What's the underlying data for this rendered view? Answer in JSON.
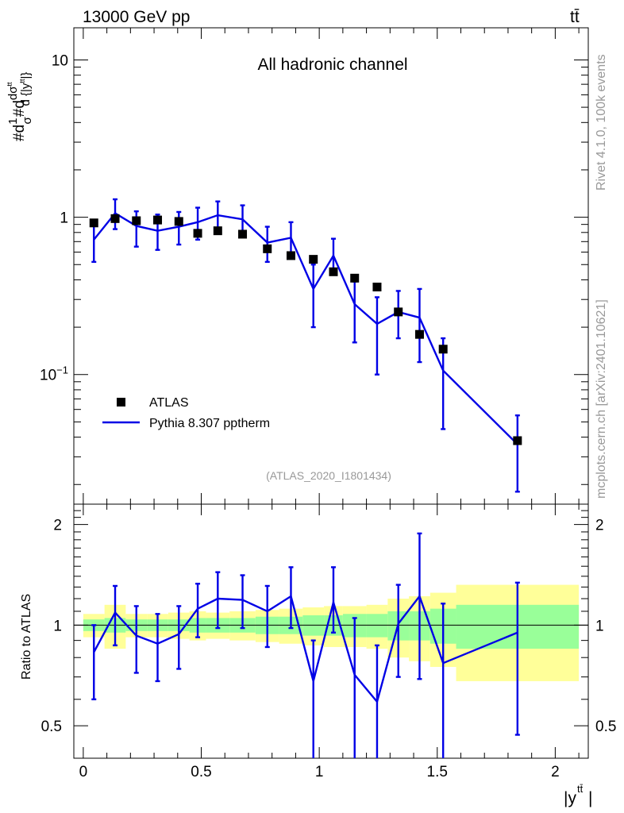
{
  "header": {
    "energy_label": "13000 GeV pp",
    "process_label": "tt̄",
    "channel_label": "All hadronic channel",
    "analysis_id": "(ATLAS_2020_I1801434)",
    "side_right_top": "Rivet 4.1.0,  100k events",
    "side_right_bottom": "mcplots.cern.ch [arXiv:2401.10621]"
  },
  "axes": {
    "main_ylabel_tex": "#d 1/σ #d dσ^{tt}/d{|y^{tt}|}",
    "ratio_ylabel": "Ratio to ATLAS",
    "xlabel": "|y",
    "xlabel_sup": "tt̄",
    "xlabel_close": "|",
    "x_ticks": [
      "0",
      "0.5",
      "1",
      "1.5",
      "2"
    ],
    "main_y_ticks": [
      "10",
      "1",
      "10^-1"
    ],
    "ratio_y_ticks": [
      "2",
      "1",
      "0.5"
    ]
  },
  "legend": {
    "data_label": "ATLAS",
    "mc_label": "Pythia 8.307 pptherm"
  },
  "colors": {
    "data": "#000000",
    "mc": "#0000e6",
    "band_inner": "#99ff99",
    "band_outer": "#ffff99"
  },
  "chart_data": {
    "type": "scatter",
    "title": "All hadronic channel",
    "xlabel": "|y^{tt}|",
    "ylabel": "1/σ dσ/d|y^{tt}|",
    "yscale": "log",
    "xlim": [
      -0.04,
      2.14
    ],
    "ylim": [
      0.015,
      16
    ],
    "ratio_ylim": [
      0.4,
      2.3
    ],
    "bin_edges": [
      0,
      0.09,
      0.18,
      0.27,
      0.36,
      0.45,
      0.52,
      0.62,
      0.73,
      0.83,
      0.93,
      1.02,
      1.1,
      1.2,
      1.29,
      1.38,
      1.47,
      1.58,
      2.1
    ],
    "x": [
      0.045,
      0.135,
      0.225,
      0.315,
      0.405,
      0.485,
      0.57,
      0.675,
      0.78,
      0.88,
      0.975,
      1.06,
      1.15,
      1.245,
      1.335,
      1.425,
      1.525,
      1.84
    ],
    "series": [
      {
        "name": "ATLAS",
        "values": [
          0.92,
          0.98,
          0.95,
          0.96,
          0.94,
          0.79,
          0.82,
          0.78,
          0.63,
          0.57,
          0.54,
          0.45,
          0.41,
          0.36,
          0.25,
          0.18,
          0.145,
          0.038
        ],
        "rel_err_inner": [
          0.04,
          0.05,
          0.04,
          0.04,
          0.04,
          0.05,
          0.05,
          0.05,
          0.06,
          0.06,
          0.07,
          0.07,
          0.08,
          0.08,
          0.1,
          0.1,
          0.12,
          0.15
        ],
        "rel_err_outer": [
          0.08,
          0.15,
          0.08,
          0.08,
          0.09,
          0.1,
          0.09,
          0.1,
          0.11,
          0.12,
          0.13,
          0.14,
          0.14,
          0.15,
          0.2,
          0.22,
          0.25,
          0.32
        ]
      },
      {
        "name": "Pythia 8.307 pptherm",
        "values": [
          0.72,
          1.06,
          0.88,
          0.82,
          0.87,
          0.93,
          1.03,
          0.97,
          0.69,
          0.74,
          0.35,
          0.57,
          0.28,
          0.21,
          0.25,
          0.23,
          0.106,
          0.036
        ],
        "err_low": [
          0.52,
          0.84,
          0.65,
          0.62,
          0.67,
          0.72,
          0.82,
          0.76,
          0.52,
          0.55,
          0.2,
          0.43,
          0.16,
          0.1,
          0.17,
          0.12,
          0.045,
          0.018
        ],
        "err_high": [
          0.92,
          1.3,
          1.09,
          1.04,
          1.08,
          1.15,
          1.26,
          1.19,
          0.87,
          0.93,
          0.5,
          0.73,
          0.39,
          0.31,
          0.34,
          0.35,
          0.17,
          0.055
        ]
      }
    ],
    "ratio": {
      "values": [
        0.83,
        1.09,
        0.93,
        0.88,
        0.94,
        1.12,
        1.2,
        1.19,
        1.1,
        1.22,
        0.68,
        1.17,
        0.71,
        0.59,
        1.01,
        1.22,
        0.77,
        0.95
      ],
      "err_low": [
        0.6,
        0.87,
        0.72,
        0.68,
        0.74,
        0.92,
        0.98,
        0.98,
        0.86,
        0.98,
        0.36,
        0.95,
        0.37,
        0.28,
        0.7,
        0.69,
        0.32,
        0.47
      ],
      "err_high": [
        1.0,
        1.31,
        1.14,
        1.08,
        1.14,
        1.33,
        1.44,
        1.41,
        1.31,
        1.49,
        0.9,
        1.49,
        1.05,
        0.87,
        1.32,
        1.88,
        1.16,
        1.34
      ]
    }
  }
}
